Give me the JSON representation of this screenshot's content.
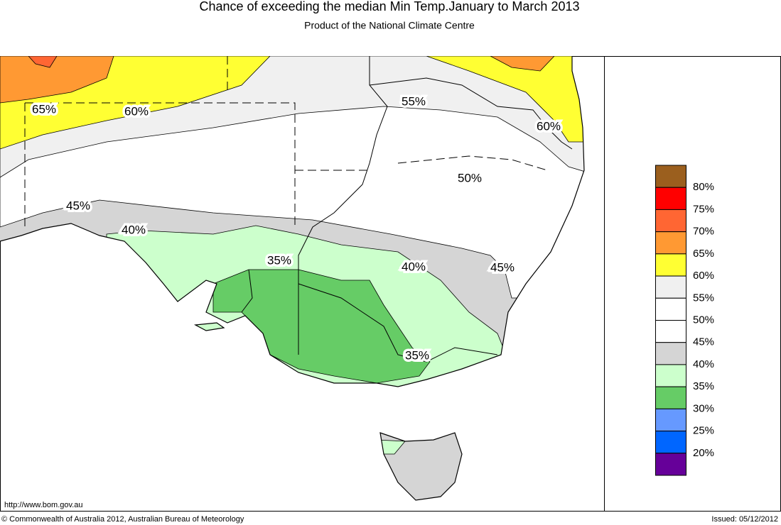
{
  "header": {
    "title": "Chance of exceeding the median Min Temp.January to March 2013",
    "subtitle": "Product of the National Climate Centre"
  },
  "map": {
    "contour_labels": [
      "65%",
      "60%",
      "55%",
      "60%",
      "50%",
      "45%",
      "40%",
      "35%",
      "40%",
      "45%",
      "35%"
    ]
  },
  "legend": {
    "colors": [
      "#9b5f1e",
      "#ff0000",
      "#ff6633",
      "#ff9933",
      "#ffff33",
      "#f0f0f0",
      "#ffffff",
      "#ffffff",
      "#d5d5d5",
      "#ccffcc",
      "#66cc66",
      "#6699ff",
      "#0066ff",
      "#660099"
    ],
    "labels": [
      "80%",
      "75%",
      "70%",
      "65%",
      "60%",
      "55%",
      "50%",
      "45%",
      "40%",
      "35%",
      "30%",
      "25%",
      "20%"
    ]
  },
  "footer": {
    "url": "http://www.bom.gov.au",
    "copyright": "© Commonwealth of Australia 2012, Australian Bureau of Meteorology",
    "issued": "Issued: 05/12/2012"
  }
}
